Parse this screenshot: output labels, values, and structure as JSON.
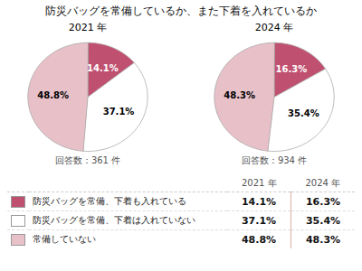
{
  "chart_data": {
    "type": "pie",
    "title": "防災バッグを常備しているか、また下着を入れているか",
    "categories": [
      "防災バッグを常備、下着も入れている",
      "防災バッグを常備、下着は入れていない",
      "常備していない"
    ],
    "colors": [
      "#c05070",
      "#ffffff",
      "#e8c0c8"
    ],
    "series": [
      {
        "name": "2021 年",
        "values": [
          14.1,
          37.1,
          48.8
        ],
        "value_labels": [
          "14.1%",
          "37.1%",
          "48.8%"
        ]
      },
      {
        "name": "2024 年",
        "values": [
          16.3,
          35.4,
          48.3
        ],
        "value_labels": [
          "16.3%",
          "35.4%",
          "48.3%"
        ]
      }
    ],
    "annotations": [
      "回答数：361 件",
      "回答数：934 件"
    ],
    "data_labels": true,
    "legend": "bottom"
  }
}
